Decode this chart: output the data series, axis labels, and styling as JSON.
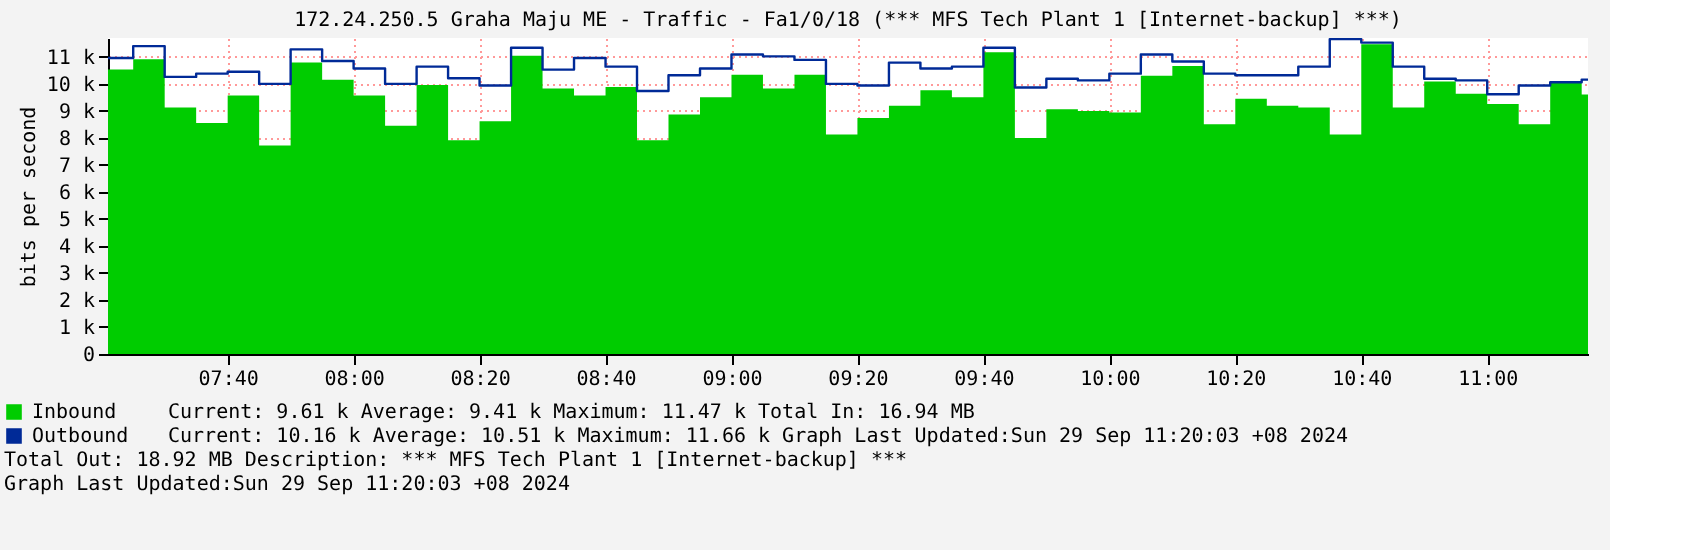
{
  "chart_data": {
    "type": "area",
    "title": "172.24.250.5 Graha Maju ME - Traffic - Fa1/0/18 (*** MFS Tech Plant 1 [Internet-backup] ***)",
    "ylabel": "bits per second",
    "x": [
      7.35,
      7.4167,
      7.5,
      7.5833,
      7.6667,
      7.75,
      7.8333,
      7.9167,
      8.0,
      8.0833,
      8.1667,
      8.25,
      8.3333,
      8.4167,
      8.5,
      8.5833,
      8.6667,
      8.75,
      8.8333,
      8.9167,
      9.0,
      9.0833,
      9.1667,
      9.25,
      9.3333,
      9.4167,
      9.5,
      9.5833,
      9.6667,
      9.75,
      9.8333,
      9.9167,
      10.0,
      10.0833,
      10.1667,
      10.25,
      10.3333,
      10.4167,
      10.5,
      10.5833,
      10.6667,
      10.75,
      10.8333,
      10.9167,
      11.0,
      11.0833,
      11.1667,
      11.25,
      11.2667
    ],
    "series": [
      {
        "name": "Inbound",
        "color": "#00cc00",
        "values": [
          10.53,
          10.91,
          9.13,
          8.55,
          9.57,
          7.72,
          10.79,
          10.15,
          9.57,
          8.45,
          9.96,
          7.91,
          8.62,
          11.04,
          9.83,
          9.57,
          9.89,
          7.91,
          8.87,
          9.51,
          10.34,
          9.83,
          10.34,
          8.13,
          8.74,
          9.19,
          9.77,
          9.51,
          11.17,
          8.0,
          9.06,
          9.0,
          8.94,
          10.3,
          10.66,
          8.51,
          9.45,
          9.19,
          9.13,
          8.13,
          11.47,
          9.13,
          10.09,
          9.64,
          9.26,
          8.51,
          10.06,
          9.61,
          9.61
        ]
      },
      {
        "name": "Outbound",
        "type": "step",
        "color": "#002a97",
        "values": [
          10.96,
          11.4,
          10.26,
          10.38,
          10.45,
          10.0,
          11.28,
          10.85,
          10.57,
          10.0,
          10.64,
          10.21,
          9.94,
          11.34,
          10.53,
          10.96,
          10.64,
          9.74,
          10.32,
          10.57,
          11.09,
          11.02,
          10.89,
          10.0,
          9.94,
          10.79,
          10.57,
          10.64,
          11.34,
          9.87,
          10.19,
          10.13,
          10.38,
          11.09,
          10.83,
          10.38,
          10.32,
          10.32,
          10.64,
          11.66,
          11.53,
          10.64,
          10.19,
          10.13,
          9.62,
          9.94,
          10.06,
          10.16,
          10.16
        ]
      }
    ],
    "xlim": [
      7.35,
      11.2667
    ],
    "xticks": [
      {
        "value": 7.6667,
        "label": "07:40"
      },
      {
        "value": 8.0,
        "label": "08:00"
      },
      {
        "value": 8.3333,
        "label": "08:20"
      },
      {
        "value": 8.6667,
        "label": "08:40"
      },
      {
        "value": 9.0,
        "label": "09:00"
      },
      {
        "value": 9.3333,
        "label": "09:20"
      },
      {
        "value": 9.6667,
        "label": "09:40"
      },
      {
        "value": 10.0,
        "label": "10:00"
      },
      {
        "value": 10.3333,
        "label": "10:20"
      },
      {
        "value": 10.6667,
        "label": "10:40"
      },
      {
        "value": 11.0,
        "label": "11:00"
      }
    ],
    "ylim": [
      0,
      11.7
    ],
    "yticks": [
      0,
      {
        "value": 1,
        "label": "1 k"
      },
      {
        "value": 2,
        "label": "2 k"
      },
      {
        "value": 3,
        "label": "3 k"
      },
      {
        "value": 4,
        "label": "4 k"
      },
      {
        "value": 5,
        "label": "5 k"
      },
      {
        "value": 6,
        "label": "6 k"
      },
      {
        "value": 7,
        "label": "7 k"
      },
      {
        "value": 8,
        "label": "8 k"
      },
      {
        "value": 9,
        "label": "9 k"
      },
      {
        "value": 10,
        "label": "10 k"
      },
      {
        "value": 11,
        "label": "11 k"
      }
    ],
    "grid": true,
    "legend": "bottom left",
    "annotations": [
      "Current: 9.61 k  Average: 9.41 k  Maximum: 11.47 k  Total In: 16.94 MB",
      "Current: 10.16 k  Average: 10.51 k  Maximum: 11.66 k  Graph Last Updated:Sun 29 Sep 11:20:03 +08 2024",
      "Total Out: 18.92 MB  Description: *** MFS Tech Plant 1 [Internet-backup] ***",
      "Graph Last Updated:Sun 29 Sep 11:20:03 +08 2024"
    ]
  }
}
